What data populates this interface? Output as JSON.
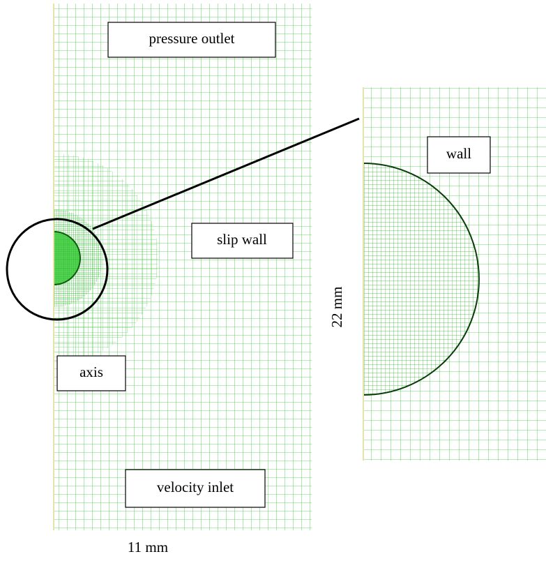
{
  "labels": {
    "pressure_outlet": "pressure outlet",
    "slip_wall": "slip wall",
    "axis": "axis",
    "velocity_inlet": "velocity inlet",
    "wall": "wall",
    "height": "22 mm",
    "width": "11 mm"
  }
}
